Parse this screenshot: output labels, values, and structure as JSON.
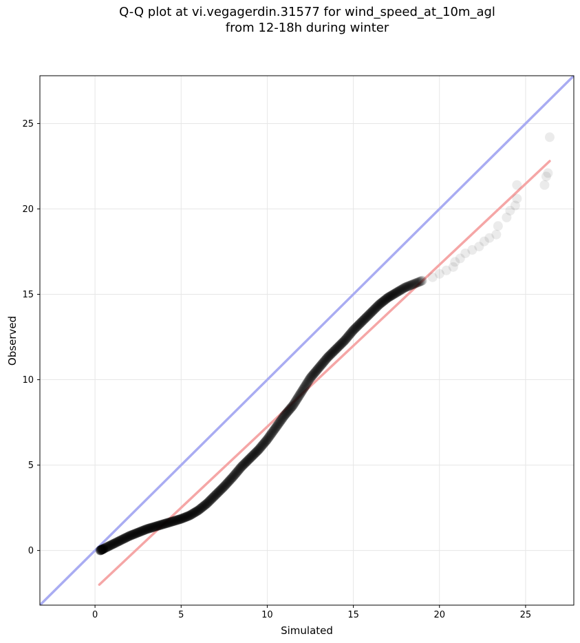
{
  "chart_data": {
    "type": "scatter",
    "title": "Q-Q plot at vi.vegagerdin.31577 for wind_speed_at_10m_agl\nfrom 12-18h during winter",
    "xlabel": "Simulated",
    "ylabel": "Observed",
    "xlim": [
      -3.2,
      27.8
    ],
    "ylim": [
      -3.2,
      27.8
    ],
    "xticks": [
      0,
      5,
      10,
      15,
      20,
      25
    ],
    "yticks": [
      0,
      5,
      10,
      15,
      20,
      25
    ],
    "grid": true,
    "identity_line": {
      "color": "#a9acf2",
      "from": [
        -3.2,
        -3.2
      ],
      "to": [
        27.8,
        27.8
      ]
    },
    "fit_line": {
      "color": "#f5a6a6",
      "from": [
        0.25,
        -2.0
      ],
      "to": [
        26.4,
        22.8
      ]
    },
    "point_color": "#000000",
    "quantile_curve": [
      [
        0.3,
        0.0
      ],
      [
        0.5,
        0.1
      ],
      [
        1.0,
        0.35
      ],
      [
        1.5,
        0.6
      ],
      [
        2.0,
        0.85
      ],
      [
        2.5,
        1.05
      ],
      [
        3.0,
        1.25
      ],
      [
        3.5,
        1.4
      ],
      [
        4.0,
        1.55
      ],
      [
        4.5,
        1.7
      ],
      [
        5.0,
        1.85
      ],
      [
        5.5,
        2.05
      ],
      [
        6.0,
        2.35
      ],
      [
        6.5,
        2.75
      ],
      [
        7.0,
        3.25
      ],
      [
        7.5,
        3.75
      ],
      [
        8.0,
        4.3
      ],
      [
        8.5,
        4.9
      ],
      [
        9.0,
        5.4
      ],
      [
        9.5,
        5.9
      ],
      [
        10.0,
        6.5
      ],
      [
        10.5,
        7.2
      ],
      [
        11.0,
        7.9
      ],
      [
        11.5,
        8.5
      ],
      [
        12.0,
        9.3
      ],
      [
        12.5,
        10.1
      ],
      [
        13.0,
        10.7
      ],
      [
        13.5,
        11.3
      ],
      [
        14.0,
        11.8
      ],
      [
        14.5,
        12.3
      ],
      [
        15.0,
        12.9
      ],
      [
        15.5,
        13.4
      ],
      [
        16.0,
        13.9
      ],
      [
        16.5,
        14.4
      ],
      [
        17.0,
        14.8
      ],
      [
        17.5,
        15.1
      ],
      [
        18.0,
        15.4
      ],
      [
        18.5,
        15.6
      ],
      [
        19.0,
        15.8
      ]
    ],
    "tail_points": [
      [
        19.6,
        16.0
      ],
      [
        20.0,
        16.2
      ],
      [
        20.4,
        16.4
      ],
      [
        20.8,
        16.6
      ],
      [
        20.9,
        16.9
      ],
      [
        21.2,
        17.1
      ],
      [
        21.5,
        17.4
      ],
      [
        21.9,
        17.6
      ],
      [
        22.3,
        17.8
      ],
      [
        22.6,
        18.1
      ],
      [
        22.9,
        18.3
      ],
      [
        23.3,
        18.5
      ],
      [
        23.4,
        19.0
      ],
      [
        23.9,
        19.5
      ],
      [
        24.1,
        19.9
      ],
      [
        24.4,
        20.2
      ],
      [
        24.5,
        20.6
      ],
      [
        24.5,
        21.4
      ],
      [
        26.1,
        21.4
      ],
      [
        26.2,
        21.9
      ],
      [
        26.3,
        22.1
      ],
      [
        26.4,
        24.2
      ]
    ]
  }
}
